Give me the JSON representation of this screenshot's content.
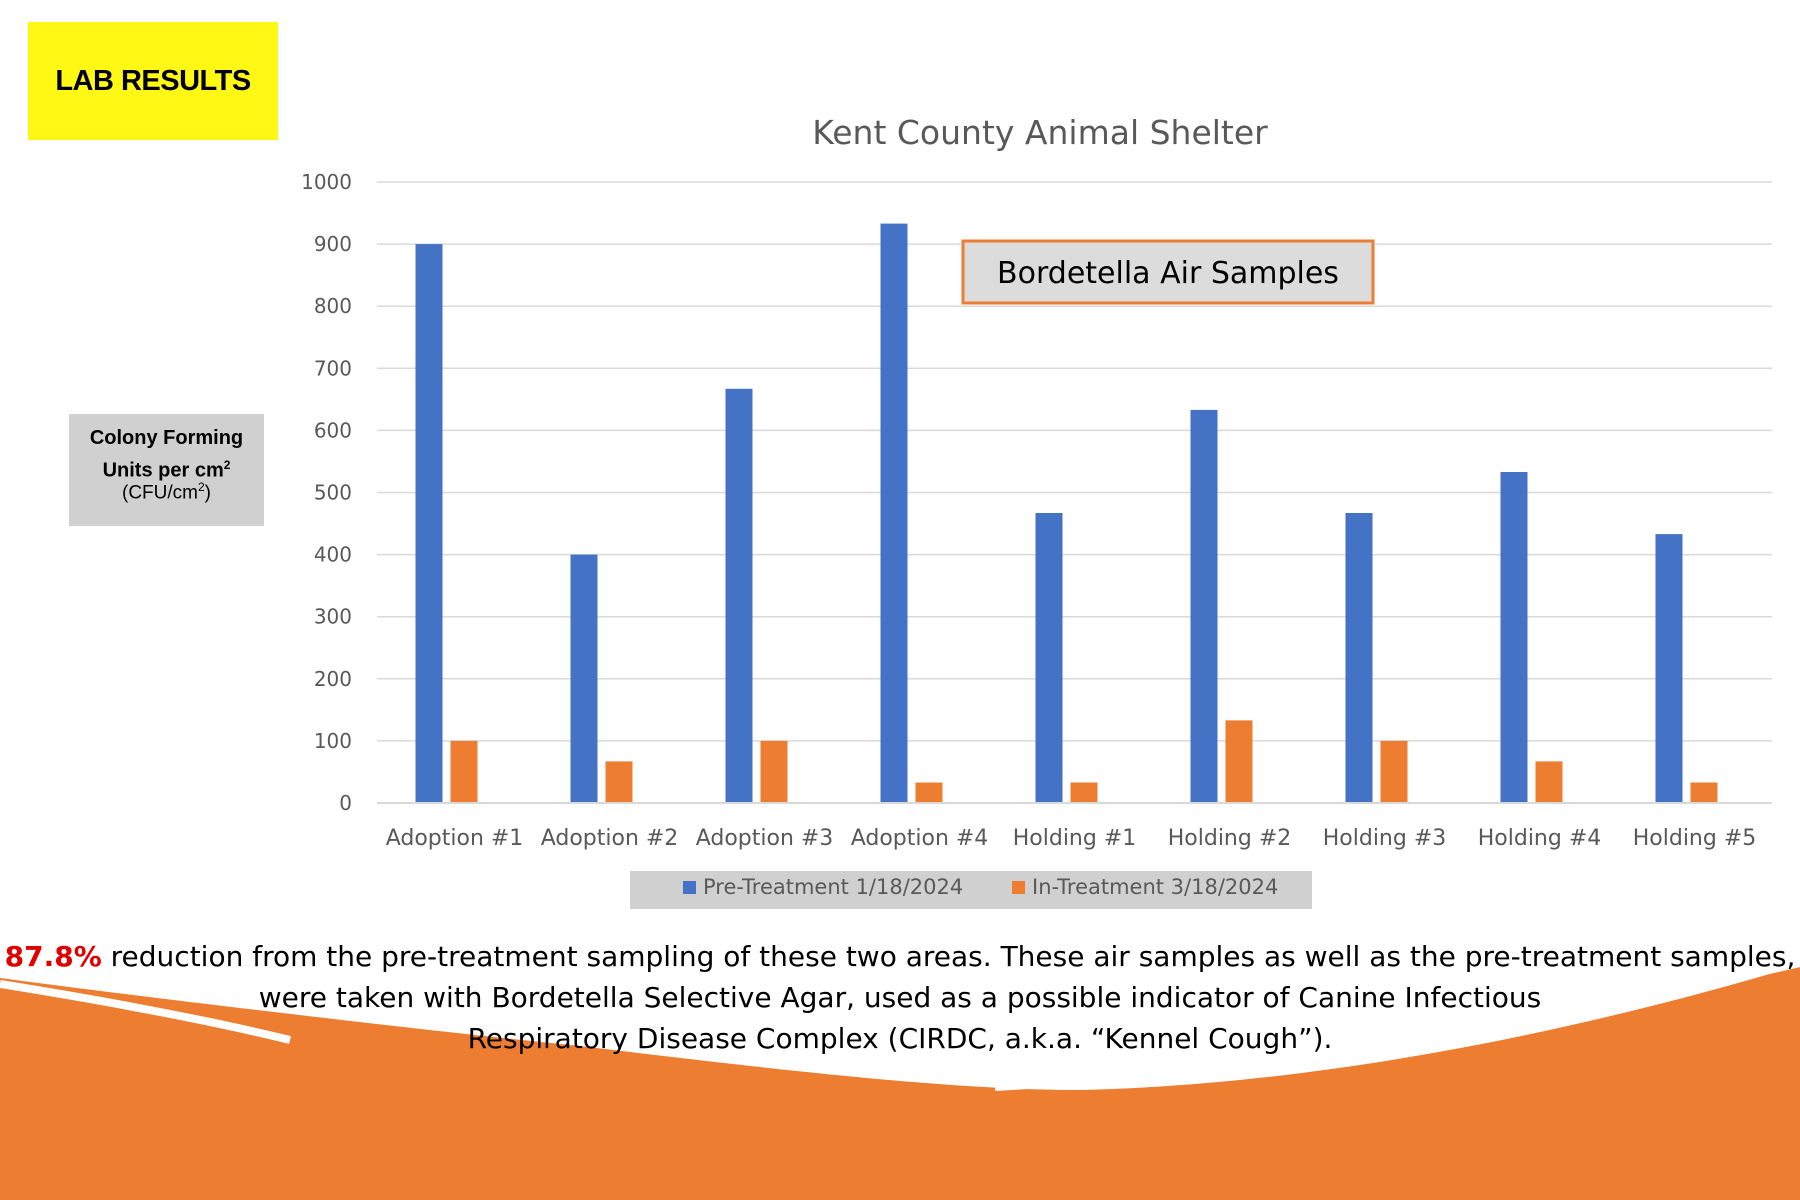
{
  "badge": {
    "label": "LAB RESULTS"
  },
  "y_axis_box": {
    "line1": "Colony Forming Units per cm",
    "line1_sup": "2",
    "line2": "(CFU/cm",
    "line2_sup": "2",
    "line2_end": ")"
  },
  "callout": {
    "label": "Bordetella Air Samples"
  },
  "caption": {
    "highlight": "87.8%",
    "line1_rest": " reduction from the pre-treatment sampling of these two areas. These air samples as well as the pre-treatment samples,",
    "line2": "were taken with Bordetella Selective Agar, used as a possible indicator of Canine Infectious",
    "line3": "Respiratory Disease Complex (CIRDC, a.k.a. “Kennel Cough”)."
  },
  "colors": {
    "pre": "#4472c4",
    "in": "#ed7d31",
    "badge": "#fff714",
    "highlight": "#e00000",
    "wave": "#ed7d31"
  },
  "chart_data": {
    "type": "bar",
    "title": "Kent County Animal Shelter",
    "categories": [
      "Adoption #1",
      "Adoption #2",
      "Adoption #3",
      "Adoption #4",
      "Holding #1",
      "Holding #2",
      "Holding #3",
      "Holding #4",
      "Holding #5"
    ],
    "series": [
      {
        "name": "Pre-Treatment 1/18/2024",
        "values": [
          900,
          400,
          667,
          933,
          467,
          633,
          467,
          533,
          433
        ]
      },
      {
        "name": "In-Treatment 3/18/2024",
        "values": [
          100,
          67,
          100,
          33,
          33,
          133,
          100,
          67,
          33
        ]
      }
    ],
    "ylim": [
      0,
      1000
    ],
    "yticks": [
      0,
      100,
      200,
      300,
      400,
      500,
      600,
      700,
      800,
      900,
      1000
    ],
    "grid": true,
    "legend": "bottom"
  }
}
